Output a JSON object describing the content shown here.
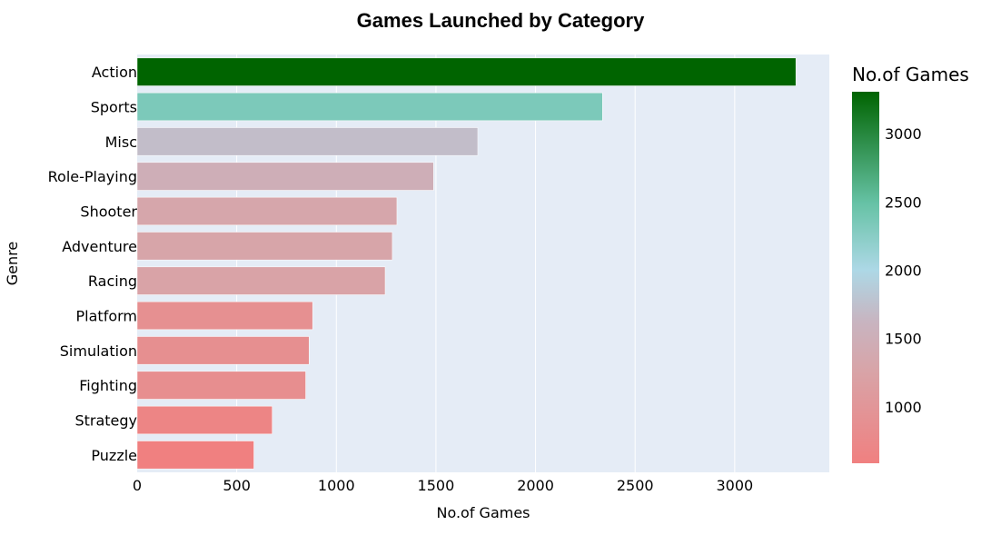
{
  "chart_data": {
    "type": "bar",
    "orientation": "horizontal",
    "title": "Games Launched by Category",
    "xlabel": "No.of Games",
    "ylabel": "Genre",
    "categories": [
      "Action",
      "Sports",
      "Misc",
      "Role-Playing",
      "Shooter",
      "Adventure",
      "Racing",
      "Platform",
      "Simulation",
      "Fighting",
      "Strategy",
      "Puzzle"
    ],
    "values": [
      3307,
      2336,
      1710,
      1488,
      1304,
      1281,
      1245,
      881,
      863,
      846,
      678,
      586
    ],
    "xlim": [
      0,
      3475
    ],
    "xticks": [
      0,
      500,
      1000,
      1500,
      2000,
      2500,
      3000
    ],
    "grid": true,
    "colorbar": {
      "title": "No.of Games",
      "range": [
        586,
        3307
      ],
      "ticks": [
        1000,
        1500,
        2000,
        2500,
        3000
      ],
      "colorscale": [
        [
          0.0,
          "#f08080"
        ],
        [
          0.25,
          "#d8a4a8"
        ],
        [
          0.38,
          "#c8b4c0"
        ],
        [
          0.52,
          "#add8e6"
        ],
        [
          0.7,
          "#66c2a5"
        ],
        [
          1.0,
          "#006400"
        ]
      ]
    },
    "colors": {
      "plot_bg": "#e5ecf6",
      "grid": "#ffffff"
    }
  }
}
